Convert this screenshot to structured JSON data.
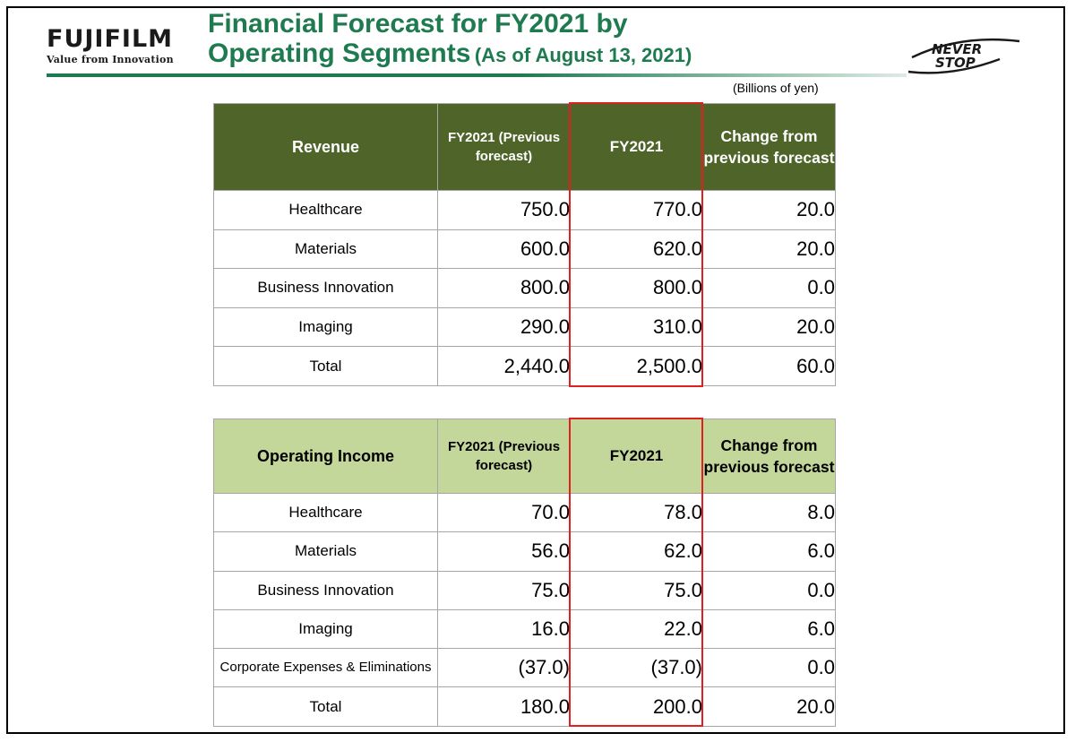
{
  "header": {
    "logo_wordmark": "FUJIFILM",
    "logo_tagline": "Value from Innovation",
    "title_line1": "Financial Forecast for FY2021 by",
    "title_line2": "Operating Segments",
    "title_date": "(As of August 13, 2021)",
    "brand_mark_line1": "NEVER",
    "brand_mark_line2": "STOP"
  },
  "units": "(Billions of yen)",
  "colors": {
    "title_green": "#1e7a4f",
    "revenue_header": "#4e6428",
    "operating_header": "#c4d79b",
    "highlight_red": "#e02020"
  },
  "revenue": {
    "headers": [
      "Revenue",
      "FY2021 (Previous forecast)",
      "FY2021",
      "Change from previous forecast"
    ],
    "rows": [
      {
        "segment": "Healthcare",
        "prev": "750.0",
        "fy": "770.0",
        "change": "20.0"
      },
      {
        "segment": "Materials",
        "prev": "600.0",
        "fy": "620.0",
        "change": "20.0"
      },
      {
        "segment": "Business Innovation",
        "prev": "800.0",
        "fy": "800.0",
        "change": "0.0"
      },
      {
        "segment": "Imaging",
        "prev": "290.0",
        "fy": "310.0",
        "change": "20.0"
      },
      {
        "segment": "Total",
        "prev": "2,440.0",
        "fy": "2,500.0",
        "change": "60.0"
      }
    ]
  },
  "operating_income": {
    "headers": [
      "Operating Income",
      "FY2021 (Previous forecast)",
      "FY2021",
      "Change from previous forecast"
    ],
    "rows": [
      {
        "segment": "Healthcare",
        "prev": "70.0",
        "fy": "78.0",
        "change": "8.0"
      },
      {
        "segment": "Materials",
        "prev": "56.0",
        "fy": "62.0",
        "change": "6.0"
      },
      {
        "segment": "Business Innovation",
        "prev": "75.0",
        "fy": "75.0",
        "change": "0.0"
      },
      {
        "segment": "Imaging",
        "prev": "16.0",
        "fy": "22.0",
        "change": "6.0"
      },
      {
        "segment": "Corporate Expenses & Eliminations",
        "prev": "(37.0)",
        "fy": "(37.0)",
        "change": "0.0"
      },
      {
        "segment": "Total",
        "prev": "180.0",
        "fy": "200.0",
        "change": "20.0"
      }
    ]
  }
}
